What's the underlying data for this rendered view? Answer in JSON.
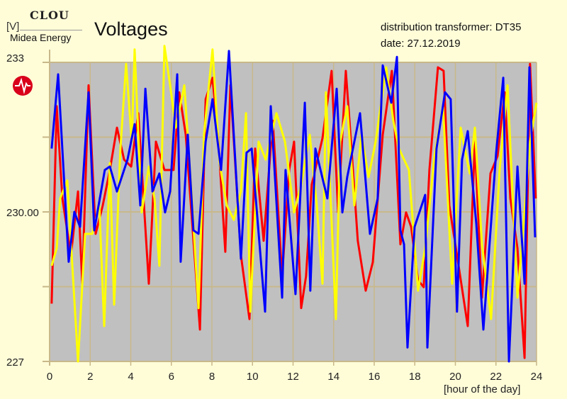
{
  "header": {
    "company": "Midea Energy",
    "logo_text": "CLOU",
    "info_line1": "distribution transformer: DT35",
    "info_line2": "date: 27.12.2019"
  },
  "colors": {
    "background": "#fffdd8",
    "plot_bg": "#c0c0c0",
    "grid": "#c8b88a",
    "logo_red": "#d9001b"
  },
  "chart_data": {
    "type": "line",
    "title": "Voltages",
    "xlabel": "[hour of the day]",
    "ylabel": "[V]",
    "xlim": [
      0,
      24
    ],
    "ylim": [
      227,
      233
    ],
    "x_ticks": [
      "0",
      "2",
      "4",
      "6",
      "8",
      "10",
      "12",
      "14",
      "16",
      "18",
      "20",
      "22",
      "24"
    ],
    "y_ticks": [
      {
        "value": 233,
        "label": "233"
      },
      {
        "value": 230,
        "label": "230.00"
      },
      {
        "value": 227,
        "label": "227"
      }
    ],
    "y_grid": [
      233,
      231.5,
      230,
      228.5,
      227
    ],
    "grid": true,
    "series": [
      {
        "color": "#ff0000",
        "points": [
          [
            0.1,
            228.16
          ],
          [
            0.35,
            232.12
          ],
          [
            0.63,
            230.27
          ],
          [
            1.05,
            229.13
          ],
          [
            1.4,
            230.41
          ],
          [
            1.61,
            228.56
          ],
          [
            1.92,
            232.54
          ],
          [
            2.27,
            229.56
          ],
          [
            2.62,
            230.13
          ],
          [
            2.97,
            230.84
          ],
          [
            3.32,
            231.69
          ],
          [
            3.67,
            231.05
          ],
          [
            4.02,
            230.91
          ],
          [
            4.37,
            231.98
          ],
          [
            4.89,
            228.56
          ],
          [
            5.24,
            231.41
          ],
          [
            5.66,
            230.84
          ],
          [
            6.11,
            230.84
          ],
          [
            6.39,
            232.4
          ],
          [
            6.71,
            231.55
          ],
          [
            6.99,
            229.99
          ],
          [
            7.41,
            227.64
          ],
          [
            7.69,
            232.26
          ],
          [
            8.03,
            232.69
          ],
          [
            8.31,
            231.48
          ],
          [
            8.66,
            229.2
          ],
          [
            8.91,
            232.54
          ],
          [
            9.43,
            229.13
          ],
          [
            9.85,
            227.85
          ],
          [
            10.13,
            231.27
          ],
          [
            10.55,
            229.42
          ],
          [
            11.0,
            231.83
          ],
          [
            11.46,
            228.71
          ],
          [
            11.81,
            230.84
          ],
          [
            12.05,
            231.41
          ],
          [
            12.4,
            228.07
          ],
          [
            12.64,
            228.71
          ],
          [
            12.92,
            230.55
          ],
          [
            13.45,
            231.48
          ],
          [
            13.9,
            232.83
          ],
          [
            14.22,
            229.99
          ],
          [
            14.6,
            232.83
          ],
          [
            14.88,
            231.27
          ],
          [
            15.19,
            229.42
          ],
          [
            15.58,
            228.42
          ],
          [
            15.93,
            228.99
          ],
          [
            16.42,
            231.55
          ],
          [
            16.87,
            232.83
          ],
          [
            17.29,
            229.35
          ],
          [
            17.57,
            229.99
          ],
          [
            17.82,
            229.7
          ],
          [
            18.16,
            228.63
          ],
          [
            18.44,
            228.49
          ],
          [
            18.72,
            230.84
          ],
          [
            19.14,
            232.9
          ],
          [
            19.42,
            232.83
          ],
          [
            19.7,
            230.13
          ],
          [
            20.08,
            229.13
          ],
          [
            20.61,
            227.71
          ],
          [
            20.96,
            231.41
          ],
          [
            21.31,
            228.28
          ],
          [
            21.73,
            230.77
          ],
          [
            22.08,
            231.12
          ],
          [
            22.43,
            232.4
          ],
          [
            22.71,
            230.27
          ],
          [
            23.06,
            229.27
          ],
          [
            23.41,
            227.07
          ],
          [
            23.68,
            232.97
          ],
          [
            23.96,
            230.27
          ]
        ]
      },
      {
        "color": "#ffff00",
        "points": [
          [
            0.1,
            228.92
          ],
          [
            0.35,
            229.27
          ],
          [
            0.52,
            230.27
          ],
          [
            0.87,
            230.63
          ],
          [
            1.4,
            227.0
          ],
          [
            1.75,
            229.56
          ],
          [
            2.1,
            229.56
          ],
          [
            2.45,
            230.13
          ],
          [
            2.69,
            227.71
          ],
          [
            2.97,
            230.98
          ],
          [
            3.18,
            228.14
          ],
          [
            3.49,
            231.27
          ],
          [
            3.77,
            232.97
          ],
          [
            4.05,
            231.41
          ],
          [
            4.19,
            233.26
          ],
          [
            4.54,
            229.99
          ],
          [
            4.89,
            230.91
          ],
          [
            5.17,
            230.27
          ],
          [
            5.41,
            228.92
          ],
          [
            5.66,
            233.33
          ],
          [
            5.94,
            232.54
          ],
          [
            6.22,
            231.69
          ],
          [
            6.64,
            232.54
          ],
          [
            6.99,
            230.41
          ],
          [
            7.34,
            228.07
          ],
          [
            7.61,
            231.55
          ],
          [
            8.03,
            233.26
          ],
          [
            8.38,
            230.98
          ],
          [
            8.73,
            230.13
          ],
          [
            9.08,
            229.84
          ],
          [
            9.43,
            230.41
          ],
          [
            9.68,
            231.98
          ],
          [
            9.89,
            228.0
          ],
          [
            10.3,
            231.41
          ],
          [
            10.65,
            231.05
          ],
          [
            11.18,
            231.98
          ],
          [
            11.6,
            231.41
          ],
          [
            12.05,
            229.99
          ],
          [
            12.4,
            230.55
          ],
          [
            12.82,
            231.55
          ],
          [
            13.17,
            230.13
          ],
          [
            13.45,
            228.56
          ],
          [
            13.62,
            232.4
          ],
          [
            14.11,
            227.85
          ],
          [
            14.32,
            231.41
          ],
          [
            14.67,
            232.12
          ],
          [
            15.02,
            230.13
          ],
          [
            15.37,
            231.55
          ],
          [
            15.72,
            230.7
          ],
          [
            16.07,
            231.41
          ],
          [
            16.59,
            232.9
          ],
          [
            16.94,
            231.83
          ],
          [
            17.22,
            231.27
          ],
          [
            17.71,
            230.84
          ],
          [
            18.16,
            228.42
          ],
          [
            18.51,
            229.27
          ],
          [
            18.97,
            231.12
          ],
          [
            19.39,
            232.12
          ],
          [
            19.84,
            228.56
          ],
          [
            20.26,
            231.69
          ],
          [
            20.71,
            230.77
          ],
          [
            20.96,
            231.69
          ],
          [
            21.31,
            229.35
          ],
          [
            21.76,
            227.85
          ],
          [
            22.18,
            230.84
          ],
          [
            22.57,
            232.54
          ],
          [
            22.78,
            230.7
          ],
          [
            23.06,
            228.28
          ],
          [
            23.41,
            229.99
          ],
          [
            23.68,
            231.41
          ],
          [
            24.0,
            232.19
          ]
        ]
      },
      {
        "color": "#0000ff",
        "points": [
          [
            0.1,
            231.27
          ],
          [
            0.42,
            232.76
          ],
          [
            0.94,
            229.0
          ],
          [
            1.22,
            230.0
          ],
          [
            1.5,
            229.7
          ],
          [
            1.92,
            232.4
          ],
          [
            2.2,
            229.63
          ],
          [
            2.72,
            230.84
          ],
          [
            2.97,
            230.91
          ],
          [
            3.32,
            230.41
          ],
          [
            3.84,
            231.05
          ],
          [
            4.19,
            231.76
          ],
          [
            4.47,
            230.13
          ],
          [
            4.72,
            232.47
          ],
          [
            5.07,
            230.41
          ],
          [
            5.41,
            230.77
          ],
          [
            5.69,
            229.99
          ],
          [
            5.94,
            230.41
          ],
          [
            6.29,
            232.76
          ],
          [
            6.46,
            229.0
          ],
          [
            6.81,
            231.55
          ],
          [
            7.09,
            229.63
          ],
          [
            7.34,
            229.56
          ],
          [
            7.69,
            231.41
          ],
          [
            8.03,
            232.26
          ],
          [
            8.45,
            230.84
          ],
          [
            8.84,
            233.23
          ],
          [
            9.43,
            229.06
          ],
          [
            9.71,
            231.19
          ],
          [
            9.96,
            231.27
          ],
          [
            10.62,
            228.0
          ],
          [
            10.9,
            232.12
          ],
          [
            11.46,
            228.28
          ],
          [
            11.63,
            230.84
          ],
          [
            12.12,
            228.35
          ],
          [
            12.58,
            232.19
          ],
          [
            12.85,
            228.42
          ],
          [
            13.1,
            231.27
          ],
          [
            13.69,
            230.27
          ],
          [
            14.15,
            232.47
          ],
          [
            14.43,
            229.99
          ],
          [
            14.67,
            230.7
          ],
          [
            15.3,
            231.98
          ],
          [
            15.79,
            229.56
          ],
          [
            16.17,
            230.27
          ],
          [
            16.42,
            232.94
          ],
          [
            16.84,
            232.19
          ],
          [
            17.12,
            233.11
          ],
          [
            17.29,
            229.63
          ],
          [
            17.47,
            229.35
          ],
          [
            17.64,
            227.28
          ],
          [
            17.99,
            229.7
          ],
          [
            18.51,
            230.34
          ],
          [
            18.62,
            227.28
          ],
          [
            19.07,
            231.27
          ],
          [
            19.49,
            232.4
          ],
          [
            19.77,
            232.26
          ],
          [
            20.08,
            228.0
          ],
          [
            20.33,
            231.05
          ],
          [
            20.61,
            231.62
          ],
          [
            21.03,
            229.77
          ],
          [
            21.38,
            227.64
          ],
          [
            22.01,
            231.19
          ],
          [
            22.36,
            232.69
          ],
          [
            22.64,
            227.0
          ],
          [
            23.06,
            230.91
          ],
          [
            23.41,
            228.56
          ],
          [
            23.65,
            232.9
          ],
          [
            23.93,
            229.49
          ]
        ]
      }
    ]
  }
}
